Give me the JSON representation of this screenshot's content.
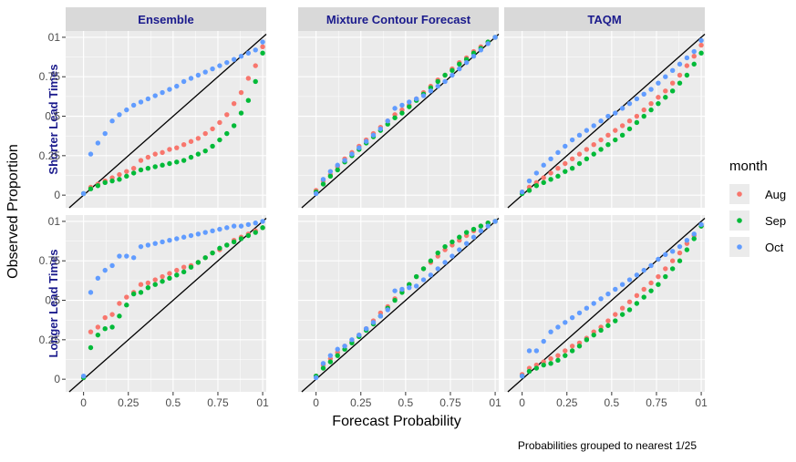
{
  "chart_data": {
    "type": "scatter",
    "xlabel": "Forecast Probability",
    "ylabel": "Observed Proportion",
    "caption": "Probabilities grouped to nearest 1/25",
    "xlim": [
      -0.1,
      1.02
    ],
    "ylim": [
      -0.08,
      1.04
    ],
    "grid": true,
    "legend_position": "right",
    "reference_line": "y = x",
    "x_ticks": [
      0,
      0.25,
      0.5,
      0.75,
      1
    ],
    "x_tick_labels": [
      "0",
      "0.25",
      "0.5",
      "0.75",
      "01"
    ],
    "y_ticks": [
      0,
      0.25,
      0.5,
      0.75,
      1
    ],
    "y_tick_labels": [
      "0",
      "0.25",
      "0.5",
      "0.75",
      "01"
    ],
    "columns": [
      "Ensemble",
      "Mixture Contour Forecast",
      "TAQM"
    ],
    "rows": [
      "Shorter Lead Times",
      "Longer Lead Times"
    ],
    "legend": {
      "title": "month",
      "entries": [
        {
          "name": "Aug",
          "color": "#F8766D"
        },
        {
          "name": "Sep",
          "color": "#00BA38"
        },
        {
          "name": "Oct",
          "color": "#619CFF"
        }
      ]
    },
    "x": [
      0,
      0.04,
      0.08,
      0.12,
      0.16,
      0.2,
      0.24,
      0.28,
      0.32,
      0.36,
      0.4,
      0.44,
      0.48,
      0.52,
      0.56,
      0.6,
      0.64,
      0.68,
      0.72,
      0.76,
      0.8,
      0.84,
      0.88,
      0.92,
      0.96,
      1
    ],
    "panels": [
      {
        "row": 0,
        "col": 0,
        "series": [
          {
            "name": "Aug",
            "values": [
              0.01,
              0.05,
              0.07,
              0.09,
              0.11,
              0.13,
              0.15,
              0.17,
              0.22,
              0.24,
              0.26,
              0.27,
              0.29,
              0.3,
              0.32,
              0.34,
              0.36,
              0.39,
              0.42,
              0.46,
              0.51,
              0.58,
              0.65,
              0.74,
              0.82,
              0.94
            ]
          },
          {
            "name": "Sep",
            "values": [
              0.01,
              0.04,
              0.06,
              0.08,
              0.09,
              0.1,
              0.12,
              0.14,
              0.16,
              0.17,
              0.18,
              0.19,
              0.2,
              0.21,
              0.22,
              0.24,
              0.26,
              0.28,
              0.31,
              0.35,
              0.39,
              0.44,
              0.52,
              0.6,
              0.72,
              0.9
            ]
          },
          {
            "name": "Oct",
            "values": [
              0.01,
              0.26,
              0.33,
              0.39,
              0.47,
              0.51,
              0.54,
              0.57,
              0.59,
              0.61,
              0.63,
              0.65,
              0.67,
              0.69,
              0.72,
              0.74,
              0.76,
              0.78,
              0.8,
              0.82,
              0.84,
              0.86,
              0.88,
              0.9,
              0.92,
              0.97
            ]
          }
        ]
      },
      {
        "row": 0,
        "col": 1,
        "series": [
          {
            "name": "Aug",
            "values": [
              0.03,
              0.09,
              0.13,
              0.18,
              0.23,
              0.27,
              0.31,
              0.35,
              0.39,
              0.43,
              0.47,
              0.51,
              0.54,
              0.57,
              0.61,
              0.65,
              0.69,
              0.73,
              0.76,
              0.8,
              0.84,
              0.87,
              0.91,
              0.94,
              0.97,
              1.0
            ]
          },
          {
            "name": "Sep",
            "values": [
              0.02,
              0.07,
              0.12,
              0.16,
              0.21,
              0.25,
              0.29,
              0.33,
              0.37,
              0.41,
              0.45,
              0.49,
              0.52,
              0.56,
              0.6,
              0.64,
              0.68,
              0.72,
              0.76,
              0.79,
              0.83,
              0.86,
              0.9,
              0.93,
              0.97,
              1.0
            ]
          },
          {
            "name": "Oct",
            "values": [
              0.01,
              0.1,
              0.15,
              0.19,
              0.22,
              0.26,
              0.3,
              0.34,
              0.38,
              0.42,
              0.47,
              0.55,
              0.57,
              0.59,
              0.61,
              0.63,
              0.66,
              0.69,
              0.72,
              0.76,
              0.8,
              0.84,
              0.88,
              0.92,
              0.96,
              1.0
            ]
          }
        ]
      },
      {
        "row": 0,
        "col": 2,
        "series": [
          {
            "name": "Aug",
            "values": [
              0.02,
              0.05,
              0.08,
              0.11,
              0.14,
              0.17,
              0.2,
              0.23,
              0.26,
              0.29,
              0.32,
              0.35,
              0.38,
              0.41,
              0.44,
              0.47,
              0.5,
              0.54,
              0.58,
              0.62,
              0.66,
              0.71,
              0.76,
              0.82,
              0.88,
              0.95
            ]
          },
          {
            "name": "Sep",
            "values": [
              0.01,
              0.03,
              0.06,
              0.08,
              0.1,
              0.12,
              0.15,
              0.17,
              0.2,
              0.23,
              0.26,
              0.29,
              0.32,
              0.35,
              0.38,
              0.42,
              0.46,
              0.5,
              0.54,
              0.58,
              0.62,
              0.66,
              0.71,
              0.76,
              0.83,
              0.9
            ]
          },
          {
            "name": "Oct",
            "values": [
              0.02,
              0.09,
              0.14,
              0.19,
              0.23,
              0.27,
              0.31,
              0.35,
              0.38,
              0.41,
              0.44,
              0.47,
              0.5,
              0.52,
              0.55,
              0.58,
              0.61,
              0.64,
              0.67,
              0.71,
              0.75,
              0.79,
              0.83,
              0.87,
              0.91,
              0.98
            ]
          }
        ]
      },
      {
        "row": 1,
        "col": 0,
        "series": [
          {
            "name": "Aug",
            "values": [
              0.01,
              0.3,
              0.33,
              0.39,
              0.41,
              0.48,
              0.52,
              0.55,
              0.6,
              0.61,
              0.63,
              0.65,
              0.67,
              0.69,
              0.71,
              0.72,
              0.74,
              0.77,
              0.8,
              0.82,
              0.85,
              0.88,
              0.9,
              0.92,
              0.94,
              0.96
            ]
          },
          {
            "name": "Sep",
            "values": [
              0.01,
              0.2,
              0.28,
              0.32,
              0.33,
              0.4,
              0.47,
              0.54,
              0.55,
              0.58,
              0.6,
              0.62,
              0.64,
              0.66,
              0.68,
              0.71,
              0.74,
              0.77,
              0.8,
              0.83,
              0.85,
              0.87,
              0.89,
              0.91,
              0.93,
              0.96
            ]
          },
          {
            "name": "Oct",
            "values": [
              0.02,
              0.55,
              0.64,
              0.69,
              0.72,
              0.78,
              0.78,
              0.77,
              0.84,
              0.85,
              0.86,
              0.87,
              0.88,
              0.89,
              0.9,
              0.91,
              0.92,
              0.93,
              0.94,
              0.95,
              0.96,
              0.97,
              0.97,
              0.98,
              0.99,
              1.0
            ]
          }
        ]
      },
      {
        "row": 1,
        "col": 1,
        "series": [
          {
            "name": "Aug",
            "values": [
              0.02,
              0.09,
              0.13,
              0.17,
              0.21,
              0.24,
              0.28,
              0.32,
              0.37,
              0.42,
              0.46,
              0.51,
              0.56,
              0.6,
              0.65,
              0.7,
              0.74,
              0.78,
              0.82,
              0.85,
              0.88,
              0.91,
              0.94,
              0.97,
              0.99,
              1.0
            ]
          },
          {
            "name": "Sep",
            "values": [
              0.02,
              0.07,
              0.11,
              0.15,
              0.19,
              0.23,
              0.27,
              0.31,
              0.35,
              0.4,
              0.45,
              0.5,
              0.55,
              0.6,
              0.65,
              0.7,
              0.75,
              0.8,
              0.84,
              0.87,
              0.9,
              0.93,
              0.95,
              0.97,
              0.99,
              1.0
            ]
          },
          {
            "name": "Oct",
            "values": [
              0.01,
              0.1,
              0.15,
              0.19,
              0.21,
              0.25,
              0.28,
              0.32,
              0.36,
              0.4,
              0.44,
              0.56,
              0.57,
              0.58,
              0.59,
              0.63,
              0.66,
              0.7,
              0.74,
              0.78,
              0.82,
              0.86,
              0.9,
              0.94,
              0.97,
              1.0
            ]
          }
        ]
      },
      {
        "row": 1,
        "col": 2,
        "series": [
          {
            "name": "Aug",
            "values": [
              0.03,
              0.07,
              0.09,
              0.11,
              0.13,
              0.15,
              0.18,
              0.21,
              0.23,
              0.26,
              0.3,
              0.33,
              0.37,
              0.41,
              0.45,
              0.49,
              0.53,
              0.57,
              0.61,
              0.65,
              0.7,
              0.75,
              0.8,
              0.86,
              0.91,
              0.97
            ]
          },
          {
            "name": "Sep",
            "values": [
              0.02,
              0.05,
              0.07,
              0.09,
              0.1,
              0.12,
              0.15,
              0.18,
              0.21,
              0.25,
              0.28,
              0.31,
              0.34,
              0.37,
              0.41,
              0.44,
              0.48,
              0.52,
              0.56,
              0.6,
              0.65,
              0.7,
              0.75,
              0.82,
              0.89,
              0.97
            ]
          },
          {
            "name": "Oct",
            "values": [
              0.02,
              0.18,
              0.18,
              0.24,
              0.3,
              0.33,
              0.36,
              0.39,
              0.42,
              0.45,
              0.48,
              0.51,
              0.54,
              0.57,
              0.6,
              0.63,
              0.66,
              0.69,
              0.72,
              0.76,
              0.79,
              0.81,
              0.84,
              0.88,
              0.92,
              0.98
            ]
          }
        ]
      }
    ]
  }
}
